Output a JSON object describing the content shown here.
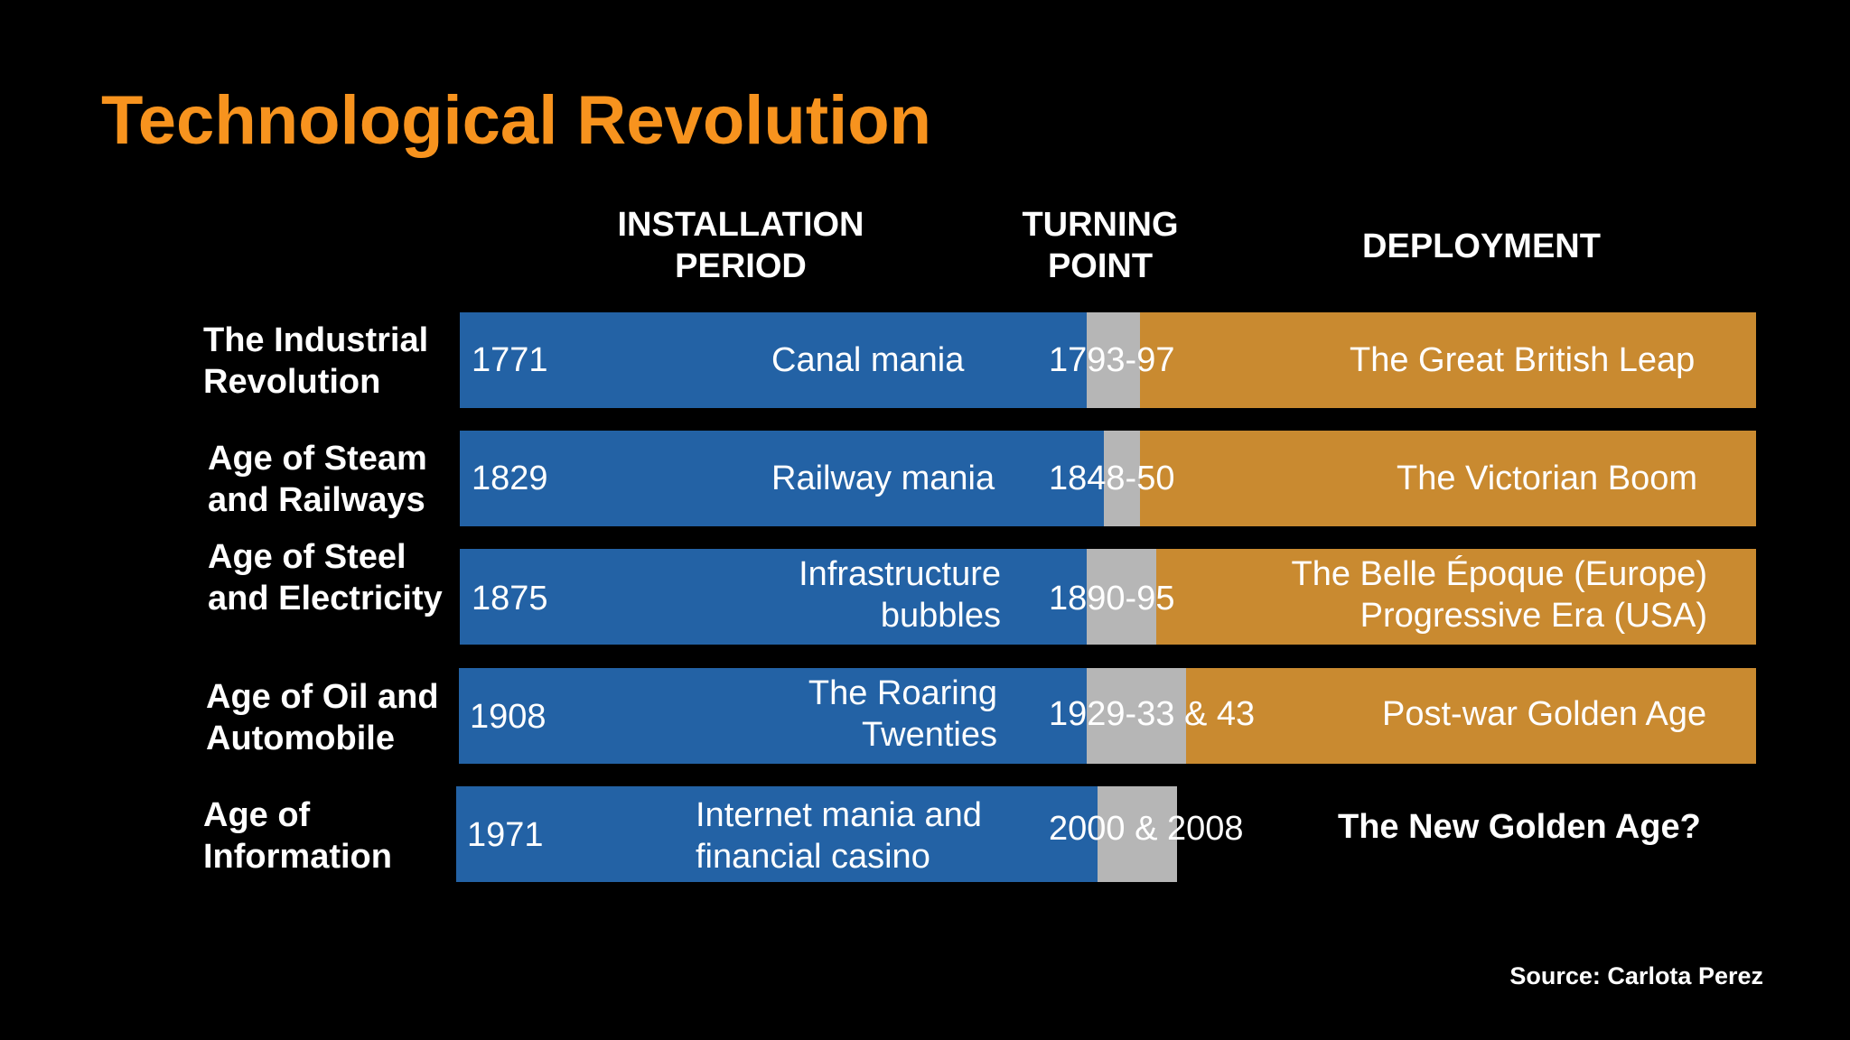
{
  "title": "Technological Revolution",
  "headers": {
    "installation": "INSTALLATION\nPERIOD",
    "turning": "TURNING\nPOINT",
    "deployment": "DEPLOYMENT"
  },
  "rows": [
    {
      "label": "The Industrial\nRevolution",
      "start_year": "1771",
      "installation": "Canal mania",
      "turning_point": "1793-97",
      "deployment": "The Great British Leap"
    },
    {
      "label": "Age of Steam\nand Railways",
      "start_year": "1829",
      "installation": "Railway mania",
      "turning_point": "1848-50",
      "deployment": "The Victorian Boom"
    },
    {
      "label": "Age of Steel\nand Electricity",
      "start_year": "1875",
      "installation": "Infrastructure\nbubbles",
      "turning_point": "1890-95",
      "deployment": "The Belle Époque (Europe)\nProgressive Era (USA)"
    },
    {
      "label": "Age of Oil and\nAutomobile",
      "start_year": "1908",
      "installation": "The Roaring\nTwenties",
      "turning_point": "1929-33 & 43",
      "deployment": "Post-war Golden Age"
    },
    {
      "label": "Age of\nInformation",
      "start_year": "1971",
      "installation": "Internet mania and\nfinancial casino",
      "turning_point": "2000 & 2008",
      "deployment": "The New Golden Age?"
    }
  ],
  "source": "Source: Carlota Perez",
  "colors": {
    "title": "#f7931e",
    "installation": "#2362a5",
    "turning_point": "#b6b6b6",
    "deployment": "#c98a30",
    "background": "#000000"
  }
}
